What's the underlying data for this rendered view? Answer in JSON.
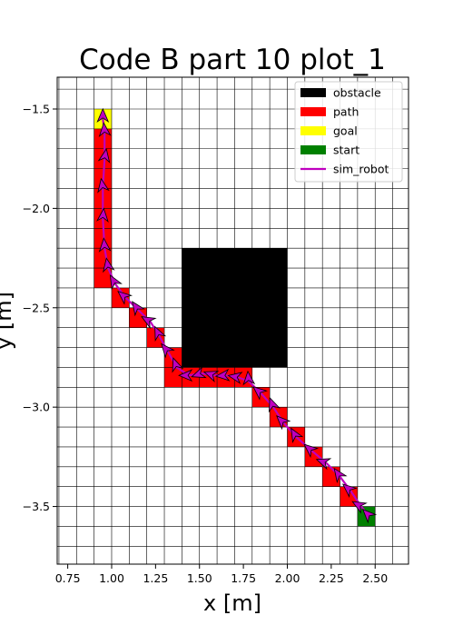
{
  "chart_data": {
    "type": "scatter",
    "title": "Code B part 10 plot_1",
    "xlabel": "x [m]",
    "ylabel": "y [m]",
    "xlim": [
      0.69,
      2.69
    ],
    "ylim": [
      -3.79,
      -1.34
    ],
    "xticks": [
      0.75,
      1.0,
      1.25,
      1.5,
      1.75,
      2.0,
      2.25,
      2.5
    ],
    "xtick_labels": [
      "0.75",
      "1.00",
      "1.25",
      "1.50",
      "1.75",
      "2.00",
      "2.25",
      "2.50"
    ],
    "yticks": [
      -3.5,
      -3.0,
      -2.5,
      -2.0,
      -1.5
    ],
    "ytick_labels": [
      "−3.5",
      "−3.0",
      "−2.5",
      "−2.0",
      "−1.5"
    ],
    "grid": true,
    "grid_step": 0.1,
    "legend_position": "upper right",
    "legend": [
      {
        "label": "obstacle",
        "color": "#000000",
        "kind": "patch"
      },
      {
        "label": "path",
        "color": "#ff0000",
        "kind": "patch"
      },
      {
        "label": "goal",
        "color": "#ffff00",
        "kind": "patch"
      },
      {
        "label": "start",
        "color": "#008000",
        "kind": "patch"
      },
      {
        "label": "sim_robot",
        "color": "#bf00bf",
        "kind": "line"
      }
    ],
    "obstacle": {
      "x0": 1.4,
      "y0": -2.8,
      "x1": 2.0,
      "y1": -2.2
    },
    "goal_cell": [
      0.9,
      -1.6
    ],
    "start_cell": [
      2.4,
      -3.6
    ],
    "path_cells": [
      [
        0.9,
        -1.7
      ],
      [
        0.9,
        -1.8
      ],
      [
        0.9,
        -1.9
      ],
      [
        0.9,
        -2.0
      ],
      [
        0.9,
        -2.1
      ],
      [
        0.9,
        -2.2
      ],
      [
        0.9,
        -2.3
      ],
      [
        0.9,
        -2.4
      ],
      [
        1.0,
        -2.5
      ],
      [
        1.1,
        -2.6
      ],
      [
        1.2,
        -2.7
      ],
      [
        1.3,
        -2.8
      ],
      [
        1.3,
        -2.9
      ],
      [
        1.4,
        -2.9
      ],
      [
        1.5,
        -2.9
      ],
      [
        1.6,
        -2.9
      ],
      [
        1.7,
        -2.9
      ],
      [
        1.8,
        -3.0
      ],
      [
        1.9,
        -3.1
      ],
      [
        2.0,
        -3.2
      ],
      [
        2.1,
        -3.3
      ],
      [
        2.2,
        -3.4
      ],
      [
        2.3,
        -3.5
      ]
    ],
    "sim_robot": {
      "x": [
        2.47,
        2.42,
        2.36,
        2.3,
        2.22,
        2.14,
        2.05,
        1.98,
        1.92,
        1.85,
        1.78,
        1.72,
        1.65,
        1.58,
        1.51,
        1.44,
        1.37,
        1.32,
        1.27,
        1.22,
        1.15,
        1.08,
        1.02,
        0.98,
        0.96,
        0.95,
        0.95,
        0.96,
        0.96,
        0.95
      ],
      "y": [
        -3.55,
        -3.5,
        -3.42,
        -3.35,
        -3.28,
        -3.22,
        -3.15,
        -3.08,
        -3.0,
        -2.93,
        -2.87,
        -2.85,
        -2.84,
        -2.84,
        -2.83,
        -2.84,
        -2.8,
        -2.72,
        -2.64,
        -2.57,
        -2.51,
        -2.45,
        -2.38,
        -2.3,
        -2.2,
        -2.05,
        -1.9,
        -1.75,
        -1.62,
        -1.55
      ],
      "heading_deg": [
        135,
        150,
        140,
        125,
        160,
        140,
        120,
        135,
        110,
        140,
        95,
        170,
        185,
        160,
        200,
        180,
        110,
        130,
        115,
        150,
        125,
        140,
        120,
        100,
        95,
        85,
        100,
        80,
        95,
        90
      ]
    }
  }
}
